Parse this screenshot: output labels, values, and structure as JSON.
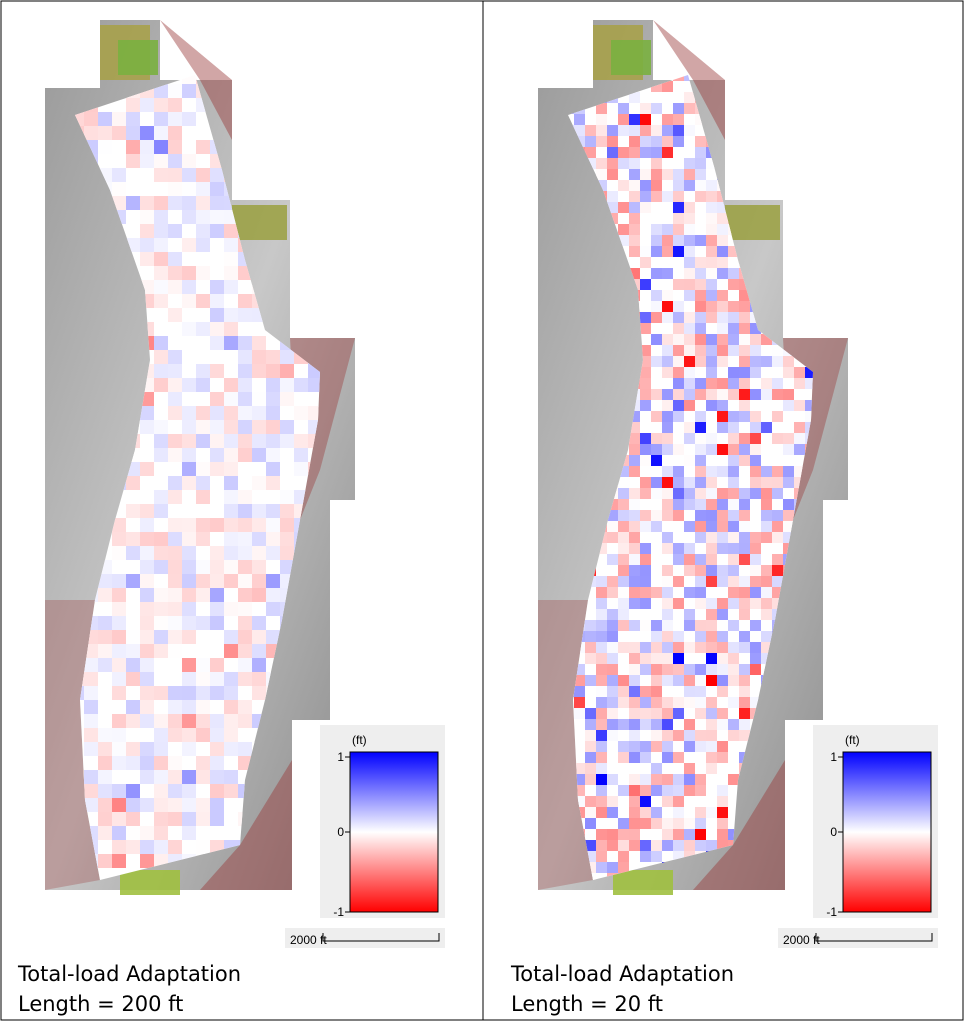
{
  "panels": [
    {
      "legend": {
        "unit": "(ft)",
        "ticks": [
          "1",
          "0",
          "-1"
        ]
      },
      "scale": "2000 ft",
      "caption": [
        "Total-load Adaptation",
        "Length = 200 ft"
      ]
    },
    {
      "legend": {
        "unit": "(ft)",
        "ticks": [
          "1",
          "0",
          "-1"
        ]
      },
      "scale": "2000 ft",
      "caption": [
        "Total-load Adaptation",
        "Length = 20 ft"
      ]
    }
  ]
}
